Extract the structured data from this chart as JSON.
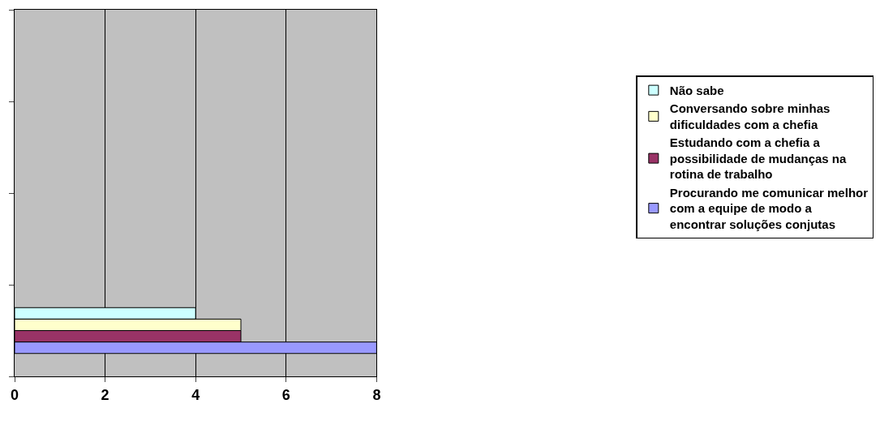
{
  "chart_data": {
    "type": "bar",
    "orientation": "horizontal",
    "categories": [
      null,
      null,
      null,
      null
    ],
    "series": [
      {
        "name": "Procurando me comunicar melhor com a equipe de modo a encontrar soluções conjutas",
        "color": "#9999ff",
        "values": [
          null,
          null,
          null,
          8
        ]
      },
      {
        "name": "Estudando com a chefia a possibilidade de mudanças na rotina de trabalho",
        "color": "#993366",
        "values": [
          null,
          null,
          null,
          5
        ]
      },
      {
        "name": "Conversando sobre minhas dificuldades com a chefia",
        "color": "#ffffcc",
        "values": [
          null,
          null,
          null,
          5
        ]
      },
      {
        "name": "Não sabe",
        "color": "#ccffff",
        "values": [
          null,
          null,
          null,
          4
        ]
      }
    ],
    "xlim": [
      0,
      8
    ],
    "xticks": [
      0,
      2,
      4,
      6,
      8
    ],
    "grid": "x",
    "legend": "right",
    "tick_labels": "x"
  }
}
